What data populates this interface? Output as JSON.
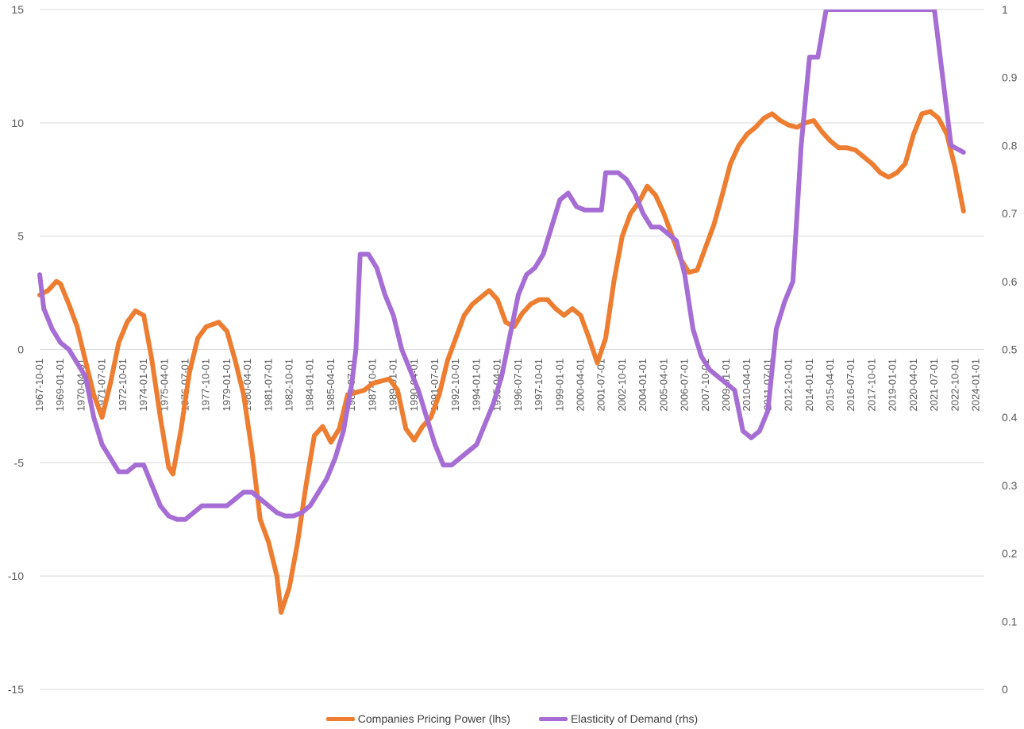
{
  "chart_data": {
    "type": "line",
    "title": "",
    "xlabel": "",
    "y_left": {
      "min": -15,
      "max": 15,
      "ticks": [
        -15,
        -10,
        -5,
        0,
        5,
        10,
        15
      ]
    },
    "y_right": {
      "min": 0,
      "max": 1,
      "ticks": [
        "0",
        "0.1",
        "0.2",
        "0.3",
        "0.4",
        "0.5",
        "0.6",
        "0.7",
        "0.8",
        "0.9",
        "1"
      ]
    },
    "x_range": [
      "1967-10-01",
      "2024-07-01"
    ],
    "x_tick_labels": [
      "1967-10-01",
      "1969-01-01",
      "1970-04-01",
      "1971-07-01",
      "1972-10-01",
      "1974-01-01",
      "1975-04-01",
      "1976-07-01",
      "1977-10-01",
      "1979-01-01",
      "1980-04-01",
      "1981-07-01",
      "1982-10-01",
      "1984-01-01",
      "1985-04-01",
      "1986-07-01",
      "1987-10-01",
      "1989-01-01",
      "1990-04-01",
      "1991-07-01",
      "1992-10-01",
      "1994-01-01",
      "1995-04-01",
      "1996-07-01",
      "1997-10-01",
      "1999-01-01",
      "2000-04-01",
      "2001-07-01",
      "2002-10-01",
      "2004-01-01",
      "2005-04-01",
      "2006-07-01",
      "2007-10-01",
      "2009-01-01",
      "2010-04-01",
      "2011-07-01",
      "2012-10-01",
      "2014-01-01",
      "2015-04-01",
      "2016-07-01",
      "2017-10-01",
      "2019-01-01",
      "2020-04-01",
      "2021-07-01",
      "2022-10-01",
      "2024-01-01"
    ],
    "legend_position": "bottom",
    "grid": true,
    "series": [
      {
        "name": "Companies Pricing Power (lhs)",
        "axis": "left",
        "color": "#ED7D31",
        "points": [
          [
            "1967-10-01",
            2.4
          ],
          [
            "1968-04-01",
            2.6
          ],
          [
            "1968-10-01",
            3.0
          ],
          [
            "1969-01-01",
            2.9
          ],
          [
            "1969-07-01",
            2.0
          ],
          [
            "1970-01-01",
            1.0
          ],
          [
            "1970-07-01",
            -0.5
          ],
          [
            "1971-01-01",
            -2.0
          ],
          [
            "1971-07-01",
            -3.0
          ],
          [
            "1972-01-01",
            -1.5
          ],
          [
            "1972-07-01",
            0.3
          ],
          [
            "1973-01-01",
            1.2
          ],
          [
            "1973-07-01",
            1.7
          ],
          [
            "1974-01-01",
            1.5
          ],
          [
            "1974-07-01",
            -0.5
          ],
          [
            "1975-01-01",
            -3.0
          ],
          [
            "1975-07-01",
            -5.2
          ],
          [
            "1975-10-01",
            -5.5
          ],
          [
            "1976-04-01",
            -3.5
          ],
          [
            "1976-10-01",
            -1.0
          ],
          [
            "1977-04-01",
            0.5
          ],
          [
            "1977-10-01",
            1.0
          ],
          [
            "1978-07-01",
            1.2
          ],
          [
            "1979-01-01",
            0.8
          ],
          [
            "1979-07-01",
            -0.5
          ],
          [
            "1980-01-01",
            -2.0
          ],
          [
            "1980-07-01",
            -4.5
          ],
          [
            "1981-01-01",
            -7.5
          ],
          [
            "1981-07-01",
            -8.5
          ],
          [
            "1982-01-01",
            -10.0
          ],
          [
            "1982-04-01",
            -11.6
          ],
          [
            "1982-10-01",
            -10.5
          ],
          [
            "1983-04-01",
            -8.5
          ],
          [
            "1983-10-01",
            -6.0
          ],
          [
            "1984-04-01",
            -3.8
          ],
          [
            "1984-10-01",
            -3.4
          ],
          [
            "1985-04-01",
            -4.1
          ],
          [
            "1985-10-01",
            -3.5
          ],
          [
            "1986-04-01",
            -2.0
          ],
          [
            "1986-10-01",
            -1.9
          ],
          [
            "1987-04-01",
            -1.8
          ],
          [
            "1987-10-01",
            -1.5
          ],
          [
            "1988-04-01",
            -1.4
          ],
          [
            "1988-10-01",
            -1.3
          ],
          [
            "1989-04-01",
            -1.8
          ],
          [
            "1989-10-01",
            -3.5
          ],
          [
            "1990-04-01",
            -4.0
          ],
          [
            "1990-10-01",
            -3.4
          ],
          [
            "1991-04-01",
            -3.0
          ],
          [
            "1991-10-01",
            -2.0
          ],
          [
            "1992-04-01",
            -0.5
          ],
          [
            "1992-10-01",
            0.5
          ],
          [
            "1993-04-01",
            1.5
          ],
          [
            "1993-10-01",
            2.0
          ],
          [
            "1994-04-01",
            2.3
          ],
          [
            "1994-10-01",
            2.6
          ],
          [
            "1995-04-01",
            2.2
          ],
          [
            "1995-10-01",
            1.2
          ],
          [
            "1996-04-01",
            1.0
          ],
          [
            "1996-10-01",
            1.6
          ],
          [
            "1997-04-01",
            2.0
          ],
          [
            "1997-10-01",
            2.2
          ],
          [
            "1998-04-01",
            2.2
          ],
          [
            "1998-10-01",
            1.8
          ],
          [
            "1999-04-01",
            1.5
          ],
          [
            "1999-10-01",
            1.8
          ],
          [
            "2000-04-01",
            1.5
          ],
          [
            "2000-10-01",
            0.5
          ],
          [
            "2001-04-01",
            -0.6
          ],
          [
            "2001-10-01",
            0.5
          ],
          [
            "2002-04-01",
            3.0
          ],
          [
            "2002-10-01",
            5.0
          ],
          [
            "2003-04-01",
            6.0
          ],
          [
            "2003-10-01",
            6.5
          ],
          [
            "2004-04-01",
            7.2
          ],
          [
            "2004-10-01",
            6.8
          ],
          [
            "2005-04-01",
            6.0
          ],
          [
            "2005-10-01",
            5.0
          ],
          [
            "2006-04-01",
            4.0
          ],
          [
            "2006-10-01",
            3.4
          ],
          [
            "2007-04-01",
            3.5
          ],
          [
            "2007-10-01",
            4.5
          ],
          [
            "2008-04-01",
            5.5
          ],
          [
            "2008-10-01",
            6.8
          ],
          [
            "2009-04-01",
            8.2
          ],
          [
            "2009-10-01",
            9.0
          ],
          [
            "2010-04-01",
            9.5
          ],
          [
            "2010-10-01",
            9.8
          ],
          [
            "2011-04-01",
            10.2
          ],
          [
            "2011-10-01",
            10.4
          ],
          [
            "2012-04-01",
            10.1
          ],
          [
            "2012-10-01",
            9.9
          ],
          [
            "2013-04-01",
            9.8
          ],
          [
            "2013-10-01",
            10.0
          ],
          [
            "2014-04-01",
            10.1
          ],
          [
            "2014-10-01",
            9.6
          ],
          [
            "2015-04-01",
            9.2
          ],
          [
            "2015-10-01",
            8.9
          ],
          [
            "2016-04-01",
            8.9
          ],
          [
            "2016-10-01",
            8.8
          ],
          [
            "2017-04-01",
            8.5
          ],
          [
            "2017-10-01",
            8.2
          ],
          [
            "2018-04-01",
            7.8
          ],
          [
            "2018-10-01",
            7.6
          ],
          [
            "2019-04-01",
            7.8
          ],
          [
            "2019-10-01",
            8.2
          ],
          [
            "2020-04-01",
            9.5
          ],
          [
            "2020-10-01",
            10.4
          ],
          [
            "2021-04-01",
            10.5
          ],
          [
            "2021-10-01",
            10.2
          ],
          [
            "2022-04-01",
            9.5
          ],
          [
            "2022-10-01",
            8.0
          ],
          [
            "2023-04-01",
            6.1
          ]
        ]
      },
      {
        "name": "Elasticity of Demand (rhs)",
        "axis": "right",
        "color": "#A66DD4",
        "points": [
          [
            "1967-10-01",
            0.61
          ],
          [
            "1968-01-01",
            0.56
          ],
          [
            "1968-07-01",
            0.53
          ],
          [
            "1969-01-01",
            0.51
          ],
          [
            "1969-07-01",
            0.5
          ],
          [
            "1970-01-01",
            0.48
          ],
          [
            "1970-07-01",
            0.46
          ],
          [
            "1971-01-01",
            0.4
          ],
          [
            "1971-07-01",
            0.36
          ],
          [
            "1972-01-01",
            0.34
          ],
          [
            "1972-07-01",
            0.32
          ],
          [
            "1973-01-01",
            0.32
          ],
          [
            "1973-07-01",
            0.33
          ],
          [
            "1974-01-01",
            0.33
          ],
          [
            "1974-07-01",
            0.3
          ],
          [
            "1975-01-01",
            0.27
          ],
          [
            "1975-07-01",
            0.255
          ],
          [
            "1976-01-01",
            0.25
          ],
          [
            "1976-07-01",
            0.25
          ],
          [
            "1977-01-01",
            0.26
          ],
          [
            "1977-07-01",
            0.27
          ],
          [
            "1978-07-01",
            0.27
          ],
          [
            "1979-01-01",
            0.27
          ],
          [
            "1979-07-01",
            0.28
          ],
          [
            "1980-01-01",
            0.29
          ],
          [
            "1980-07-01",
            0.29
          ],
          [
            "1981-01-01",
            0.28
          ],
          [
            "1981-07-01",
            0.27
          ],
          [
            "1982-01-01",
            0.26
          ],
          [
            "1982-07-01",
            0.255
          ],
          [
            "1983-01-01",
            0.255
          ],
          [
            "1983-07-01",
            0.26
          ],
          [
            "1984-01-01",
            0.27
          ],
          [
            "1984-07-01",
            0.29
          ],
          [
            "1985-01-01",
            0.31
          ],
          [
            "1985-07-01",
            0.34
          ],
          [
            "1986-01-01",
            0.38
          ],
          [
            "1986-07-01",
            0.45
          ],
          [
            "1986-10-01",
            0.5
          ],
          [
            "1987-01-01",
            0.64
          ],
          [
            "1987-07-01",
            0.64
          ],
          [
            "1988-01-01",
            0.62
          ],
          [
            "1988-07-01",
            0.58
          ],
          [
            "1989-01-01",
            0.55
          ],
          [
            "1989-07-01",
            0.5
          ],
          [
            "1990-01-01",
            0.47
          ],
          [
            "1990-07-01",
            0.44
          ],
          [
            "1991-01-01",
            0.4
          ],
          [
            "1991-07-01",
            0.36
          ],
          [
            "1992-01-01",
            0.33
          ],
          [
            "1992-07-01",
            0.33
          ],
          [
            "1993-01-01",
            0.34
          ],
          [
            "1993-07-01",
            0.35
          ],
          [
            "1994-01-01",
            0.36
          ],
          [
            "1994-07-01",
            0.39
          ],
          [
            "1995-01-01",
            0.42
          ],
          [
            "1995-07-01",
            0.46
          ],
          [
            "1996-01-01",
            0.52
          ],
          [
            "1996-07-01",
            0.58
          ],
          [
            "1997-01-01",
            0.61
          ],
          [
            "1997-07-01",
            0.62
          ],
          [
            "1998-01-01",
            0.64
          ],
          [
            "1998-07-01",
            0.68
          ],
          [
            "1999-01-01",
            0.72
          ],
          [
            "1999-07-01",
            0.73
          ],
          [
            "2000-01-01",
            0.71
          ],
          [
            "2000-07-01",
            0.705
          ],
          [
            "2001-01-01",
            0.705
          ],
          [
            "2001-07-01",
            0.705
          ],
          [
            "2001-10-01",
            0.76
          ],
          [
            "2002-07-01",
            0.76
          ],
          [
            "2003-01-01",
            0.75
          ],
          [
            "2003-07-01",
            0.73
          ],
          [
            "2004-01-01",
            0.7
          ],
          [
            "2004-07-01",
            0.68
          ],
          [
            "2005-01-01",
            0.68
          ],
          [
            "2005-07-01",
            0.67
          ],
          [
            "2006-01-01",
            0.66
          ],
          [
            "2006-07-01",
            0.61
          ],
          [
            "2007-01-01",
            0.53
          ],
          [
            "2007-07-01",
            0.49
          ],
          [
            "2008-01-01",
            0.47
          ],
          [
            "2008-07-01",
            0.46
          ],
          [
            "2009-01-01",
            0.45
          ],
          [
            "2009-07-01",
            0.44
          ],
          [
            "2010-01-01",
            0.38
          ],
          [
            "2010-07-01",
            0.37
          ],
          [
            "2011-01-01",
            0.38
          ],
          [
            "2011-07-01",
            0.41
          ],
          [
            "2012-01-01",
            0.53
          ],
          [
            "2012-07-01",
            0.57
          ],
          [
            "2013-01-01",
            0.6
          ],
          [
            "2013-07-01",
            0.8
          ],
          [
            "2014-01-01",
            0.93
          ],
          [
            "2014-07-01",
            0.93
          ],
          [
            "2015-01-01",
            1.0
          ],
          [
            "2021-07-01",
            1.0
          ],
          [
            "2022-01-01",
            0.9
          ],
          [
            "2022-07-01",
            0.8
          ],
          [
            "2023-04-01",
            0.79
          ]
        ]
      }
    ]
  },
  "legend": {
    "items": [
      {
        "label": "Companies Pricing Power (lhs)",
        "color": "#ED7D31"
      },
      {
        "label": "Elasticity of Demand (rhs)",
        "color": "#A66DD4"
      }
    ]
  }
}
